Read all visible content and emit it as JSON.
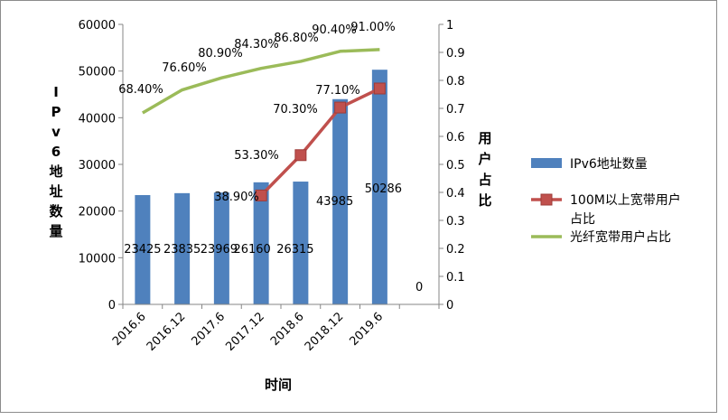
{
  "chart_data": {
    "type": "bar",
    "title": "",
    "categories": [
      "2016.6",
      "2016.12",
      "2017.6",
      "2017.12",
      "2018.6",
      "2018.12",
      "2019.6",
      ""
    ],
    "xlabel": "时间",
    "ylabel_left_chars": [
      "I",
      "P",
      "v",
      "6",
      "地",
      "址",
      "数",
      "量"
    ],
    "ylabel_right_chars": [
      "用",
      "户",
      "占",
      "比"
    ],
    "ylim_left": [
      0,
      60000
    ],
    "ylim_right": [
      0,
      1
    ],
    "yticks_left": [
      "0",
      "10000",
      "20000",
      "30000",
      "40000",
      "50000",
      "60000"
    ],
    "yticks_right": [
      "0",
      "0.1",
      "0.2",
      "0.3",
      "0.4",
      "0.5",
      "0.6",
      "0.7",
      "0.8",
      "0.9",
      "1"
    ],
    "grid": false,
    "legend_position": "right",
    "series": [
      {
        "name": "IPv6地址数量",
        "kind": "bar",
        "axis": "left",
        "color": "#4f81bd",
        "values": [
          23425,
          23835,
          23969,
          26160,
          26315,
          43985,
          50286,
          0
        ],
        "labels": [
          "23425",
          "23835",
          "23969",
          "26160",
          "26315",
          "43985",
          "50286",
          "0"
        ]
      },
      {
        "name_lines": [
          "100M以上宽带用户",
          "占比"
        ],
        "kind": "line",
        "axis": "right",
        "color": "#c0504d",
        "marker": "square",
        "values": [
          null,
          null,
          null,
          0.389,
          0.533,
          0.703,
          0.771,
          null
        ],
        "labels": [
          "",
          "",
          "",
          "38.90%",
          "53.30%",
          "70.30%",
          "77.10%",
          ""
        ]
      },
      {
        "name": "光纤宽带用户占比",
        "kind": "line",
        "axis": "right",
        "color": "#9bbb59",
        "marker": "none",
        "values": [
          0.684,
          0.766,
          0.809,
          0.843,
          0.868,
          0.904,
          0.91,
          null
        ],
        "labels": [
          "68.40%",
          "76.60%",
          "80.90%",
          "84.30%",
          "86.80%",
          "90.40%",
          "91.00%",
          ""
        ]
      }
    ]
  }
}
